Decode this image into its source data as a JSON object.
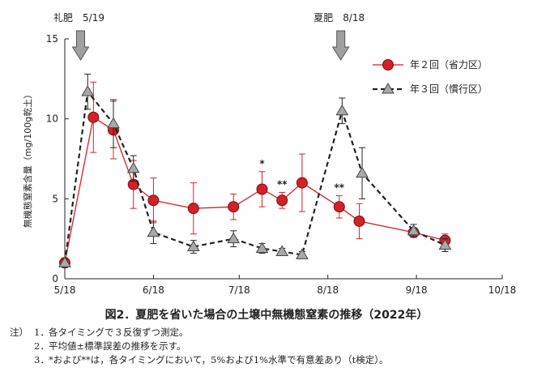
{
  "chart_data": {
    "type": "line",
    "ylabel": "無機態窒素含量（mg/100g乾土）",
    "ylim": [
      0,
      15
    ],
    "yticks": [
      0,
      5,
      10,
      15
    ],
    "xlim": [
      "2022-05-18",
      "2022-10-18"
    ],
    "xticks": [
      "5/18",
      "6/18",
      "7/18",
      "8/18",
      "9/18",
      "10/18"
    ],
    "legend_position": "top-right",
    "grid": false,
    "fertilizer_events": [
      {
        "label": "礼肥　5/19",
        "date": "2022-05-19"
      },
      {
        "label": "夏肥　8/18",
        "date": "2022-08-18"
      }
    ],
    "series": [
      {
        "name": "年２回（省力区）",
        "color": "#d42027",
        "marker": "circle",
        "line": "solid",
        "points": [
          {
            "date": "2022-05-18",
            "y": 1.0,
            "err": 0.3
          },
          {
            "date": "2022-05-28",
            "y": 10.1,
            "err": 2.2
          },
          {
            "date": "2022-06-04",
            "y": 9.3,
            "err": 1.8
          },
          {
            "date": "2022-06-11",
            "y": 5.9,
            "err": 1.5
          },
          {
            "date": "2022-06-18",
            "y": 4.9,
            "err": 1.4
          },
          {
            "date": "2022-07-02",
            "y": 4.4,
            "err": 1.6
          },
          {
            "date": "2022-07-16",
            "y": 4.5,
            "err": 0.8
          },
          {
            "date": "2022-07-26",
            "y": 5.6,
            "err": 1.1,
            "sig": "*"
          },
          {
            "date": "2022-08-02",
            "y": 4.9,
            "err": 0.5,
            "sig": "**"
          },
          {
            "date": "2022-08-09",
            "y": 6.0,
            "err": 1.8
          },
          {
            "date": "2022-08-22",
            "y": 4.5,
            "err": 0.7,
            "sig": "**"
          },
          {
            "date": "2022-08-29",
            "y": 3.6,
            "err": 1.1
          },
          {
            "date": "2022-09-17",
            "y": 2.9,
            "err": 0.3
          },
          {
            "date": "2022-09-28",
            "y": 2.4,
            "err": 0.4
          }
        ]
      },
      {
        "name": "年３回（慣行区）",
        "color": "#222222",
        "marker": "triangle",
        "line": "dashed",
        "points": [
          {
            "date": "2022-05-18",
            "y": 1.0,
            "err": 0.2
          },
          {
            "date": "2022-05-26",
            "y": 11.7,
            "err": 1.1
          },
          {
            "date": "2022-06-04",
            "y": 9.7,
            "err": 1.5
          },
          {
            "date": "2022-06-11",
            "y": 6.9,
            "err": 0.8
          },
          {
            "date": "2022-06-18",
            "y": 2.9,
            "err": 0.7
          },
          {
            "date": "2022-07-02",
            "y": 2.0,
            "err": 0.4
          },
          {
            "date": "2022-07-16",
            "y": 2.5,
            "err": 0.5
          },
          {
            "date": "2022-07-26",
            "y": 1.9,
            "err": 0.3
          },
          {
            "date": "2022-08-02",
            "y": 1.7,
            "err": 0.2
          },
          {
            "date": "2022-08-09",
            "y": 1.5,
            "err": 0.2
          },
          {
            "date": "2022-08-23",
            "y": 10.5,
            "err": 0.8
          },
          {
            "date": "2022-08-30",
            "y": 6.6,
            "err": 1.6
          },
          {
            "date": "2022-09-17",
            "y": 3.0,
            "err": 0.4
          },
          {
            "date": "2022-09-28",
            "y": 2.1,
            "err": 0.4
          }
        ]
      }
    ]
  },
  "caption": "図2．夏肥を省いた場合の土壌中無機態窒素の推移（2022年）",
  "notes": {
    "prefix": "注）",
    "items": [
      {
        "num": "1．",
        "text": "各タイミングで３反復ずつ測定。"
      },
      {
        "num": "2．",
        "text": "平均値±標準誤差の推移を示す。"
      },
      {
        "num": "3．",
        "text": "*および**は，各タイミングにおいて，5%および1%水準で有意差あり（t検定）。"
      }
    ]
  }
}
